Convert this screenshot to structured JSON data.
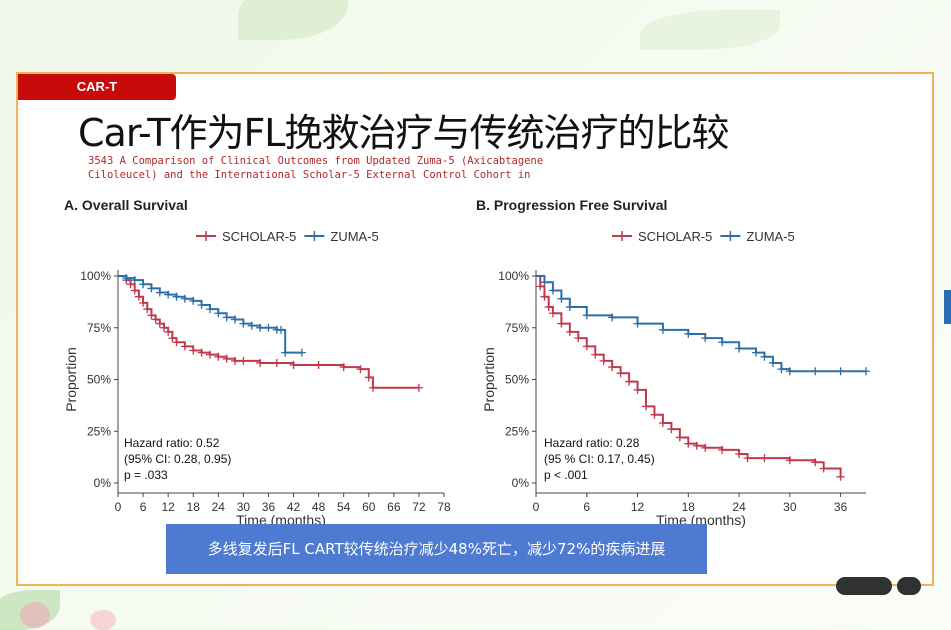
{
  "tag": "CAR-T",
  "title": "Car-T作为FL挽救治疗与传统治疗的比较",
  "subtitle_lines": [
    "3543 A Comparison of Clinical Outcomes from Updated Zuma-5 (Axicabtagene",
    "Ciloleucel) and the International Scholar-5 External Control Cohort in"
  ],
  "caption": "多线复发后FL CART较传统治疗减少48%死亡，减少72%的疾病进展",
  "colors": {
    "scholar": "#c0394c",
    "zuma": "#2e6ea6",
    "tag_bg": "#c80a0a",
    "caption_bg": "#4f7ad1",
    "frame": "#f0b25a"
  },
  "chart_data": [
    {
      "type": "line",
      "title": "A. Overall Survival",
      "xlabel": "Time (months)",
      "ylabel": "Proportion",
      "xticks": [
        0,
        6,
        12,
        18,
        24,
        30,
        36,
        42,
        48,
        54,
        60,
        66,
        72,
        78
      ],
      "yticks": [
        0,
        0.25,
        0.5,
        0.75,
        1.0
      ],
      "ytick_labels": [
        "0%",
        "25%",
        "50%",
        "75%",
        "100%"
      ],
      "xlim": [
        0,
        78
      ],
      "ylim": [
        0,
        1
      ],
      "legend": [
        "SCHOLAR-5",
        "ZUMA-5"
      ],
      "legend_position": "top",
      "annotation": [
        "Hazard ratio: 0.52",
        "(95% CI: 0.28, 0.95)",
        "p = .033"
      ],
      "series": [
        {
          "name": "SCHOLAR-5",
          "x": [
            0,
            2,
            3,
            4,
            5,
            6,
            7,
            8,
            9,
            10,
            11,
            12,
            13,
            14,
            16,
            18,
            20,
            22,
            24,
            26,
            28,
            30,
            34,
            38,
            42,
            48,
            54,
            58,
            60,
            61,
            72
          ],
          "y": [
            1.0,
            0.98,
            0.96,
            0.93,
            0.9,
            0.87,
            0.84,
            0.81,
            0.79,
            0.77,
            0.75,
            0.73,
            0.7,
            0.68,
            0.66,
            0.64,
            0.63,
            0.62,
            0.61,
            0.6,
            0.59,
            0.59,
            0.58,
            0.58,
            0.57,
            0.57,
            0.56,
            0.55,
            0.51,
            0.46,
            0.46
          ]
        },
        {
          "name": "ZUMA-5",
          "x": [
            0,
            2,
            4,
            6,
            8,
            10,
            12,
            14,
            16,
            18,
            20,
            22,
            24,
            26,
            28,
            30,
            32,
            34,
            36,
            38,
            39,
            40,
            44
          ],
          "y": [
            1.0,
            0.99,
            0.98,
            0.96,
            0.94,
            0.92,
            0.91,
            0.9,
            0.89,
            0.88,
            0.86,
            0.84,
            0.82,
            0.8,
            0.79,
            0.77,
            0.76,
            0.75,
            0.75,
            0.74,
            0.74,
            0.63,
            0.63
          ]
        }
      ]
    },
    {
      "type": "line",
      "title": "B. Progression Free Survival",
      "xlabel": "Time (months)",
      "ylabel": "Proportion",
      "xticks": [
        0,
        6,
        12,
        18,
        24,
        30,
        36
      ],
      "yticks": [
        0,
        0.25,
        0.5,
        0.75,
        1.0
      ],
      "ytick_labels": [
        "0%",
        "25%",
        "50%",
        "75%",
        "100%"
      ],
      "xlim": [
        0,
        39
      ],
      "ylim": [
        0,
        1
      ],
      "legend": [
        "SCHOLAR-5",
        "ZUMA-5"
      ],
      "legend_position": "top",
      "annotation": [
        "Hazard ratio: 0.28",
        "(95 % CI: 0.17, 0.45)",
        "p < .001"
      ],
      "series": [
        {
          "name": "SCHOLAR-5",
          "x": [
            0,
            0.5,
            1,
            1.5,
            2,
            3,
            4,
            5,
            6,
            7,
            8,
            9,
            10,
            11,
            12,
            13,
            14,
            15,
            16,
            17,
            18,
            19,
            20,
            22,
            24,
            25,
            27,
            30,
            33,
            34,
            36
          ],
          "y": [
            1.0,
            0.95,
            0.9,
            0.85,
            0.82,
            0.77,
            0.73,
            0.7,
            0.66,
            0.62,
            0.59,
            0.56,
            0.53,
            0.49,
            0.45,
            0.37,
            0.33,
            0.29,
            0.26,
            0.22,
            0.19,
            0.18,
            0.17,
            0.16,
            0.14,
            0.12,
            0.12,
            0.11,
            0.1,
            0.07,
            0.03
          ]
        },
        {
          "name": "ZUMA-5",
          "x": [
            0,
            1,
            2,
            3,
            4,
            6,
            9,
            12,
            15,
            18,
            20,
            22,
            24,
            26,
            27,
            28,
            29,
            30,
            33,
            36,
            39
          ],
          "y": [
            1.0,
            0.97,
            0.93,
            0.89,
            0.85,
            0.81,
            0.8,
            0.77,
            0.74,
            0.72,
            0.7,
            0.68,
            0.65,
            0.63,
            0.61,
            0.58,
            0.55,
            0.54,
            0.54,
            0.54,
            0.54
          ]
        }
      ]
    }
  ]
}
